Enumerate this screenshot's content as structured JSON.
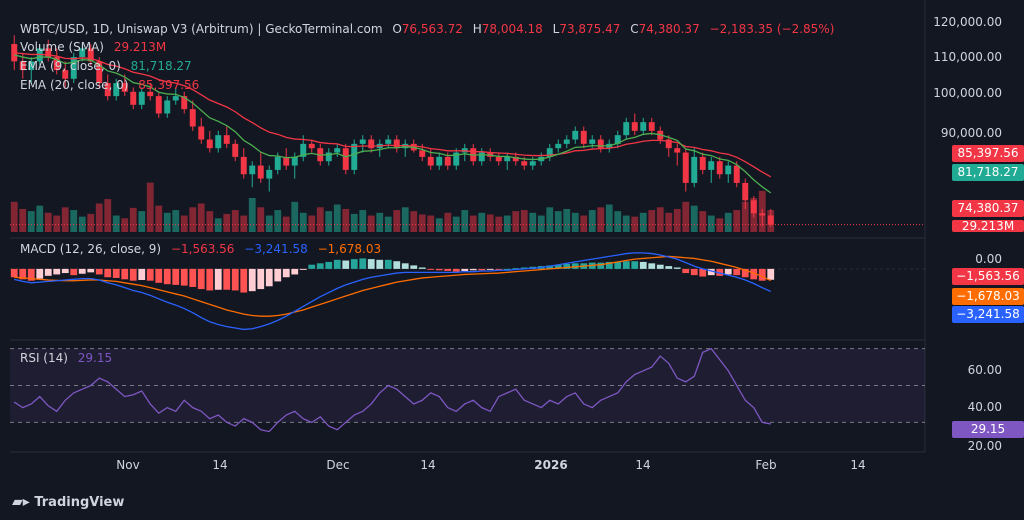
{
  "header": {
    "title": "WBTC/USD, 1D, Uniswap V3 (Arbitrum) | GeckoTerminal.com",
    "o_label": "O",
    "o_value": "76,563.72",
    "h_label": "H",
    "h_value": "78,004.18",
    "l_label": "L",
    "l_value": "73,875.47",
    "c_label": "C",
    "c_value": "74,380.37",
    "change": "−2,183.35 (−2.85%)"
  },
  "legends": {
    "volume_label": "Volume (SMA)",
    "volume_value": "29.213M",
    "ema9_label": "EMA (9, close, 0)",
    "ema9_value": "81,718.27",
    "ema20_label": "EMA (20, close, 0)",
    "ema20_value": "85,397.56",
    "macd_label": "MACD (12, 26, close, 9)",
    "macd_hist": "−1,563.56",
    "macd_line": "−3,241.58",
    "macd_signal": "−1,678.03",
    "rsi_label": "RSI (14)",
    "rsi_value": "29.15"
  },
  "price_axis": {
    "ticks": [
      "120,000.00",
      "110,000.00",
      "100,000.00",
      "90,000.00"
    ],
    "tags": {
      "ema20": "85,397.56",
      "ema9": "81,718.27",
      "close": "74,380.37",
      "volume": "29.213M"
    }
  },
  "macd_axis": {
    "ticks": [
      "0.00"
    ],
    "tags": {
      "hist": "−1,563.56",
      "signal": "−1,678.03",
      "macd": "−3,241.58"
    }
  },
  "rsi_axis": {
    "ticks": [
      "60.00",
      "40.00",
      "20.00"
    ],
    "tag": "29.15"
  },
  "time_axis": [
    {
      "label": "Nov",
      "bold": false
    },
    {
      "label": "14",
      "bold": false
    },
    {
      "label": "Dec",
      "bold": false
    },
    {
      "label": "14",
      "bold": false
    },
    {
      "label": "2026",
      "bold": true
    },
    {
      "label": "14",
      "bold": false
    },
    {
      "label": "Feb",
      "bold": false
    },
    {
      "label": "14",
      "bold": false
    }
  ],
  "brand": "TradingView",
  "colors": {
    "background": "#131722",
    "up": "#22ab94",
    "down": "#f23645",
    "ema9": "#4caf50",
    "ema20": "#f23645",
    "macd": "#2962ff",
    "signal": "#ff6d00",
    "rsi": "#7e57c2"
  },
  "chart_data": [
    {
      "type": "candlestick",
      "title": "WBTC/USD, 1D, Uniswap V3 (Arbitrum) | GeckoTerminal.com",
      "ylim": [
        72000,
        122000
      ],
      "candles": [
        [
          116,
          118,
          110,
          112
        ],
        [
          112,
          114,
          108,
          110
        ],
        [
          110,
          113,
          107,
          112
        ],
        [
          112,
          116,
          111,
          115
        ],
        [
          115,
          117,
          112,
          113
        ],
        [
          113,
          115,
          109,
          110
        ],
        [
          110,
          112,
          106,
          108
        ],
        [
          108,
          114,
          107,
          113
        ],
        [
          113,
          116,
          112,
          115
        ],
        [
          115,
          116,
          111,
          112
        ],
        [
          112,
          113,
          106,
          107
        ],
        [
          107,
          109,
          103,
          104
        ],
        [
          104,
          108,
          103,
          107
        ],
        [
          107,
          109,
          104,
          105
        ],
        [
          105,
          106,
          101,
          102
        ],
        [
          102,
          106,
          101,
          105
        ],
        [
          105,
          107,
          103,
          104
        ],
        [
          104,
          105,
          99,
          100
        ],
        [
          100,
          104,
          99,
          103
        ],
        [
          103,
          106,
          102,
          104
        ],
        [
          104,
          105,
          100,
          101
        ],
        [
          101,
          103,
          96,
          97
        ],
        [
          97,
          99,
          93,
          94
        ],
        [
          94,
          96,
          91,
          92
        ],
        [
          92,
          96,
          91,
          95
        ],
        [
          95,
          97,
          92,
          93
        ],
        [
          93,
          94,
          89,
          90
        ],
        [
          90,
          92,
          85,
          86
        ],
        [
          86,
          89,
          83,
          88
        ],
        [
          88,
          91,
          84,
          85
        ],
        [
          85,
          88,
          82,
          87
        ],
        [
          87,
          91,
          86,
          90
        ],
        [
          90,
          92,
          87,
          88
        ],
        [
          88,
          91,
          85,
          90
        ],
        [
          90,
          95,
          89,
          93
        ],
        [
          93,
          94,
          91,
          92
        ],
        [
          92,
          93,
          88,
          89
        ],
        [
          89,
          92,
          88,
          91
        ],
        [
          91,
          93,
          90,
          92
        ],
        [
          92,
          93,
          86,
          87
        ],
        [
          87,
          94,
          86,
          93
        ],
        [
          93,
          95,
          91,
          94
        ],
        [
          94,
          95,
          91,
          92
        ],
        [
          92,
          94,
          90,
          93
        ],
        [
          93,
          95,
          92,
          94
        ],
        [
          94,
          95,
          91,
          92
        ],
        [
          92,
          94,
          90,
          93
        ],
        [
          93,
          94,
          91,
          91.5
        ],
        [
          91.5,
          93,
          89,
          90
        ],
        [
          90,
          92,
          87,
          88
        ],
        [
          88,
          91,
          87,
          90
        ],
        [
          90,
          91,
          87,
          88
        ],
        [
          88,
          92,
          87,
          91
        ],
        [
          91,
          93,
          89,
          92
        ],
        [
          92,
          93,
          88,
          89
        ],
        [
          89,
          92,
          88,
          91
        ],
        [
          91,
          92,
          89,
          90
        ],
        [
          90,
          91,
          88,
          89
        ],
        [
          89,
          91,
          87,
          90
        ],
        [
          90,
          91,
          88,
          89
        ],
        [
          89,
          90,
          87,
          88
        ],
        [
          88,
          90,
          87,
          89
        ],
        [
          89,
          91,
          88,
          90
        ],
        [
          90,
          93,
          89,
          92
        ],
        [
          92,
          94,
          91,
          93
        ],
        [
          93,
          95,
          92,
          94
        ],
        [
          94,
          97,
          93,
          96
        ],
        [
          96,
          97,
          92,
          93
        ],
        [
          93,
          95,
          92,
          94
        ],
        [
          94,
          95,
          91,
          92
        ],
        [
          92,
          94,
          91,
          93
        ],
        [
          93,
          96,
          92,
          95
        ],
        [
          95,
          99,
          94,
          98
        ],
        [
          98,
          100,
          95,
          96
        ],
        [
          96,
          99,
          95,
          98
        ],
        [
          98,
          99,
          95,
          96
        ],
        [
          96,
          97,
          93,
          94
        ],
        [
          94,
          95,
          90,
          92
        ],
        [
          92,
          93,
          88,
          91
        ],
        [
          91,
          92,
          82,
          84
        ],
        [
          84,
          92,
          83,
          90
        ],
        [
          90,
          91,
          86,
          87
        ],
        [
          87,
          90,
          84,
          89
        ],
        [
          89,
          90,
          85,
          86
        ],
        [
          86,
          89,
          84,
          88
        ],
        [
          88,
          89,
          83,
          84
        ],
        [
          84,
          85,
          78,
          80
        ],
        [
          80,
          81,
          76,
          77
        ],
        [
          77,
          78,
          74,
          76.5
        ],
        [
          76.5,
          78,
          73.9,
          74.4
        ]
      ],
      "volume": [
        55,
        42,
        38,
        48,
        35,
        30,
        45,
        40,
        28,
        33,
        52,
        60,
        30,
        25,
        44,
        38,
        90,
        48,
        35,
        40,
        30,
        45,
        52,
        38,
        25,
        33,
        40,
        30,
        62,
        45,
        30,
        40,
        28,
        55,
        35,
        30,
        45,
        38,
        50,
        42,
        33,
        40,
        30,
        35,
        28,
        40,
        45,
        38,
        32,
        30,
        25,
        35,
        28,
        40,
        30,
        35,
        32,
        28,
        30,
        38,
        40,
        35,
        30,
        45,
        38,
        42,
        35,
        30,
        40,
        45,
        50,
        38,
        30,
        28,
        35,
        40,
        45,
        35,
        42,
        55,
        48,
        38,
        30,
        25,
        35,
        40,
        55,
        62,
        75,
        40
      ],
      "volume_ylim": [
        0,
        350
      ],
      "ema9": [
        113.5,
        113,
        112.6,
        113,
        113,
        112.4,
        111.5,
        111.8,
        112.4,
        112.3,
        111.2,
        109.8,
        109.3,
        108.4,
        107.1,
        106.7,
        106.1,
        104.9,
        104.5,
        104.4,
        103.7,
        102.4,
        100.7,
        99,
        98.2,
        97.2,
        95.8,
        93.8,
        92.6,
        91.1,
        90.3,
        90.2,
        89.8,
        89.9,
        90.5,
        90.8,
        90.4,
        90.5,
        90.8,
        90,
        90.6,
        91.3,
        91.4,
        91.7,
        92.1,
        92.1,
        92.3,
        92.2,
        91.7,
        91,
        90.8,
        90.3,
        90.4,
        90.7,
        90.4,
        90.5,
        90.4,
        90.1,
        90.1,
        89.8,
        89.5,
        89.4,
        89.5,
        90,
        90.6,
        91.3,
        92.2,
        92.3,
        92.6,
        92.5,
        92.6,
        93.1,
        94.1,
        94.5,
        95.2,
        95.4,
        95.1,
        94.5,
        93.8,
        91.8,
        91.4,
        90.6,
        90.3,
        89.5,
        89.2,
        88.2,
        86.6,
        84.7,
        83.1,
        81.7
      ],
      "ema20": [
        114,
        113.8,
        113.6,
        113.6,
        113.5,
        113.2,
        112.7,
        112.6,
        112.8,
        112.7,
        112.1,
        111.3,
        110.9,
        110.3,
        109.5,
        109.1,
        108.6,
        107.8,
        107.3,
        107,
        106.4,
        105.5,
        104.3,
        103.1,
        102.3,
        101.5,
        100.4,
        99,
        97.9,
        96.7,
        95.7,
        95.2,
        94.5,
        94.1,
        94,
        93.8,
        93.3,
        93.1,
        93,
        92.4,
        92.4,
        92.5,
        92.5,
        92.5,
        92.7,
        92.6,
        92.6,
        92.5,
        92.3,
        91.9,
        91.7,
        91.4,
        91.4,
        91.4,
        91.2,
        91.2,
        91,
        90.9,
        90.8,
        90.6,
        90.4,
        90.3,
        90.3,
        90.4,
        90.6,
        90.9,
        91.4,
        91.5,
        91.8,
        91.9,
        92,
        92.3,
        92.9,
        93.2,
        93.6,
        93.8,
        93.8,
        93.6,
        93.3,
        92.4,
        92.2,
        91.7,
        91.4,
        90.9,
        90.6,
        89.9,
        88.9,
        87.7,
        86.5,
        85.4
      ]
    },
    {
      "type": "bar",
      "title": "MACD (12, 26, close, 9)",
      "histogram": [
        -1200,
        -1500,
        -1700,
        -1400,
        -1000,
        -800,
        -600,
        -900,
        -700,
        -500,
        -800,
        -1200,
        -1300,
        -1500,
        -1700,
        -1600,
        -1700,
        -2000,
        -2200,
        -2300,
        -2400,
        -2600,
        -2900,
        -3100,
        -3000,
        -3000,
        -3100,
        -3400,
        -3200,
        -2900,
        -2500,
        -1800,
        -1200,
        -800,
        -100,
        600,
        800,
        1000,
        1300,
        1200,
        1400,
        1500,
        1400,
        1300,
        1300,
        1100,
        800,
        500,
        200,
        -100,
        -200,
        -300,
        -400,
        -300,
        -200,
        -200,
        -100,
        -100,
        0,
        100,
        200,
        300,
        400,
        500,
        600,
        700,
        800,
        800,
        900,
        900,
        1000,
        1000,
        1100,
        1100,
        1000,
        800,
        600,
        400,
        200,
        -600,
        -900,
        -1100,
        -900,
        -1000,
        -800,
        -900,
        -1200,
        -1500,
        -1700,
        -1564
      ],
      "macd": [
        -1500,
        -1800,
        -2000,
        -1900,
        -1800,
        -1700,
        -1600,
        -1500,
        -1400,
        -1400,
        -1600,
        -2000,
        -2300,
        -2700,
        -3100,
        -3400,
        -3800,
        -4300,
        -4800,
        -5200,
        -5700,
        -6300,
        -7000,
        -7600,
        -8000,
        -8300,
        -8500,
        -8700,
        -8600,
        -8300,
        -7900,
        -7400,
        -6800,
        -6100,
        -5400,
        -4700,
        -4000,
        -3400,
        -2800,
        -2300,
        -1900,
        -1500,
        -1200,
        -1000,
        -800,
        -600,
        -500,
        -500,
        -500,
        -500,
        -500,
        -500,
        -500,
        -400,
        -400,
        -300,
        -300,
        -200,
        -200,
        -100,
        0,
        100,
        200,
        400,
        600,
        800,
        1000,
        1200,
        1400,
        1600,
        1800,
        2000,
        2200,
        2300,
        2300,
        2200,
        2000,
        1700,
        1400,
        900,
        400,
        0,
        -300,
        -600,
        -900,
        -1200,
        -1600,
        -2100,
        -2700,
        -3242
      ],
      "signal": [
        -1200,
        -1300,
        -1400,
        -1500,
        -1600,
        -1650,
        -1700,
        -1700,
        -1650,
        -1600,
        -1600,
        -1700,
        -1800,
        -2000,
        -2200,
        -2400,
        -2700,
        -3000,
        -3300,
        -3600,
        -3900,
        -4300,
        -4700,
        -5100,
        -5500,
        -5900,
        -6200,
        -6500,
        -6700,
        -6800,
        -6800,
        -6700,
        -6500,
        -6200,
        -5900,
        -5500,
        -5100,
        -4700,
        -4300,
        -3900,
        -3500,
        -3100,
        -2800,
        -2500,
        -2200,
        -1900,
        -1700,
        -1500,
        -1300,
        -1200,
        -1100,
        -1000,
        -900,
        -800,
        -750,
        -700,
        -650,
        -600,
        -500,
        -400,
        -300,
        -200,
        -100,
        0,
        100,
        200,
        300,
        400,
        500,
        600,
        800,
        1000,
        1200,
        1400,
        1500,
        1600,
        1700,
        1800,
        1700,
        1600,
        1500,
        1300,
        1100,
        800,
        500,
        200,
        -200,
        -600,
        -1100,
        -1678
      ],
      "ylim": [
        -9500,
        3000
      ]
    },
    {
      "type": "line",
      "title": "RSI (14)",
      "values": [
        41,
        38,
        40,
        44,
        39,
        36,
        42,
        46,
        48,
        50,
        54,
        52,
        48,
        44,
        45,
        47,
        40,
        35,
        38,
        36,
        42,
        38,
        36,
        32,
        34,
        30,
        28,
        32,
        30,
        26,
        25,
        30,
        34,
        36,
        32,
        30,
        33,
        28,
        26,
        30,
        34,
        36,
        40,
        46,
        50,
        48,
        44,
        40,
        42,
        46,
        44,
        38,
        36,
        40,
        42,
        38,
        36,
        44,
        46,
        48,
        42,
        40,
        38,
        42,
        40,
        44,
        46,
        40,
        38,
        42,
        44,
        46,
        52,
        56,
        58,
        60,
        66,
        62,
        54,
        52,
        55,
        68,
        70,
        64,
        58,
        50,
        42,
        38,
        30,
        29.15
      ],
      "ylim": [
        15,
        72
      ],
      "bands": [
        30,
        50,
        70
      ]
    }
  ]
}
